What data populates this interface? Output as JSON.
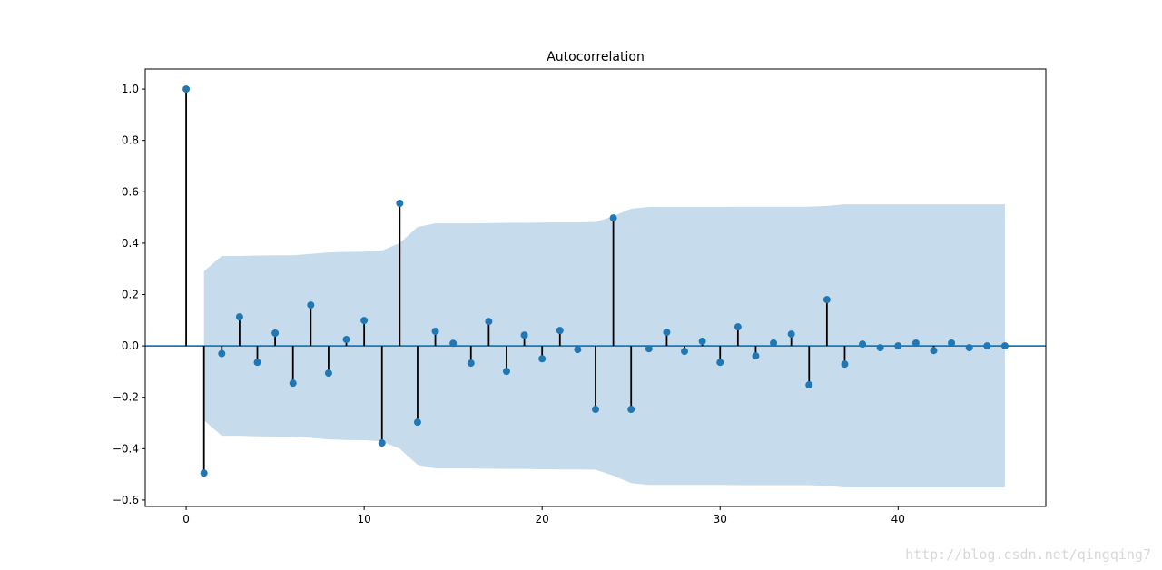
{
  "chart_data": {
    "type": "stem",
    "title": "Autocorrelation",
    "xlabel": "",
    "ylabel": "",
    "xlim": [
      -2.3,
      48.3
    ],
    "ylim": [
      -0.625,
      1.078
    ],
    "xticks": [
      0,
      10,
      20,
      30,
      40
    ],
    "xtick_labels": [
      "0",
      "10",
      "20",
      "30",
      "40"
    ],
    "yticks": [
      -0.6,
      -0.4,
      -0.2,
      0.0,
      0.2,
      0.4,
      0.6,
      0.8,
      1.0
    ],
    "ytick_labels": [
      "−0.6",
      "−0.4",
      "−0.2",
      "0.0",
      "0.2",
      "0.4",
      "0.6",
      "0.8",
      "1.0"
    ],
    "lags": [
      0,
      1,
      2,
      3,
      4,
      5,
      6,
      7,
      8,
      9,
      10,
      11,
      12,
      13,
      14,
      15,
      16,
      17,
      18,
      19,
      20,
      21,
      22,
      23,
      24,
      25,
      26,
      27,
      28,
      29,
      30,
      31,
      32,
      33,
      34,
      35,
      36,
      37,
      38,
      39,
      40,
      41,
      42,
      43,
      44,
      45,
      46
    ],
    "values": [
      1.0,
      -0.495,
      -0.03,
      0.113,
      -0.064,
      0.05,
      -0.145,
      0.159,
      -0.106,
      0.025,
      0.099,
      -0.378,
      0.555,
      -0.297,
      0.057,
      0.01,
      -0.067,
      0.095,
      -0.099,
      0.042,
      -0.05,
      0.06,
      -0.014,
      -0.247,
      0.498,
      -0.247,
      -0.011,
      0.053,
      -0.021,
      0.018,
      -0.064,
      0.074,
      -0.039,
      0.011,
      0.046,
      -0.152,
      0.18,
      -0.071,
      0.007,
      -0.007,
      0.0,
      0.011,
      -0.018,
      0.011,
      -0.007,
      0.0,
      0.0
    ],
    "confidence_band": {
      "lags": [
        1,
        2,
        3,
        4,
        5,
        6,
        7,
        8,
        9,
        10,
        11,
        12,
        13,
        14,
        15,
        16,
        17,
        18,
        19,
        20,
        21,
        22,
        23,
        24,
        25,
        26,
        27,
        28,
        29,
        30,
        31,
        32,
        33,
        34,
        35,
        36,
        37,
        38,
        39,
        40,
        41,
        42,
        43,
        44,
        45,
        46
      ],
      "upper": [
        0.29,
        0.35,
        0.35,
        0.352,
        0.353,
        0.353,
        0.358,
        0.364,
        0.366,
        0.367,
        0.371,
        0.4,
        0.463,
        0.477,
        0.477,
        0.477,
        0.478,
        0.479,
        0.479,
        0.48,
        0.481,
        0.481,
        0.482,
        0.505,
        0.534,
        0.541,
        0.541,
        0.541,
        0.541,
        0.541,
        0.542,
        0.542,
        0.542,
        0.542,
        0.542,
        0.545,
        0.551,
        0.551,
        0.551,
        0.551,
        0.551,
        0.551,
        0.551,
        0.551,
        0.551,
        0.551
      ]
    },
    "colors": {
      "marker": "#1f77b4",
      "stem": "#000000",
      "band": "#c6dbeb",
      "zero_line": "#1f77b4"
    },
    "grid": false,
    "legend": "none"
  },
  "watermark": "http://blog.csdn.net/qingqing7"
}
